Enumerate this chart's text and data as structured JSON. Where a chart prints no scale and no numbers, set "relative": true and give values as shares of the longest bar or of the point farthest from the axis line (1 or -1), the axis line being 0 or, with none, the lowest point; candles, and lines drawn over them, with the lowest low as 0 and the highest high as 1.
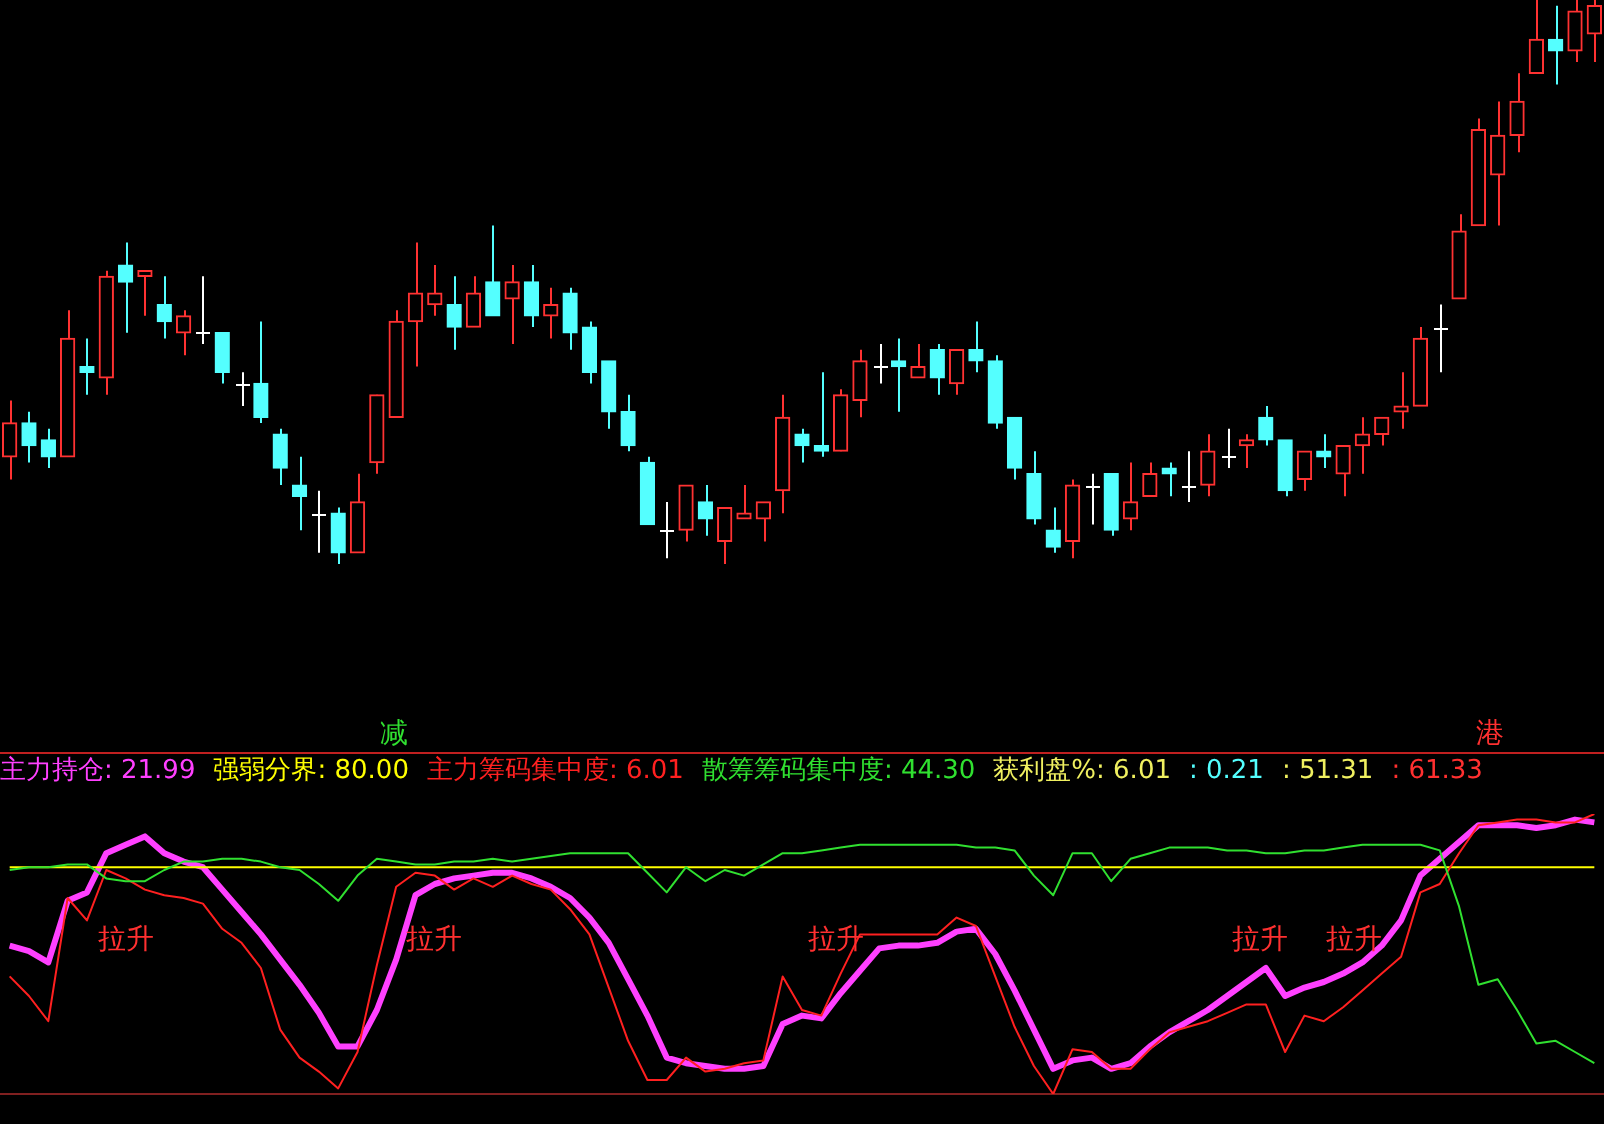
{
  "chart_data": [
    {
      "type": "candlestick",
      "relative": true,
      "tick_labels": false,
      "categories": [
        null,
        null,
        null,
        null,
        null,
        null,
        null,
        null,
        null,
        null,
        null,
        null,
        null,
        null,
        null,
        null,
        null,
        null,
        null,
        null,
        null,
        null,
        null,
        null,
        null,
        null,
        null,
        null,
        null,
        null,
        null,
        null,
        null,
        null,
        null,
        null,
        null,
        null,
        null,
        null,
        null,
        null,
        null,
        null,
        null,
        null,
        null,
        null,
        null,
        null,
        null,
        null,
        null,
        null,
        null,
        null,
        null,
        null,
        null,
        null,
        null,
        null,
        null,
        null,
        null,
        null,
        null,
        null,
        null,
        null,
        null,
        null,
        null,
        null,
        null,
        null,
        null,
        null,
        null,
        null,
        null,
        null,
        null
      ],
      "ohlc": [
        [
          0.19,
          0.29,
          0.15,
          0.25
        ],
        [
          0.25,
          0.27,
          0.18,
          0.21
        ],
        [
          0.22,
          0.24,
          0.17,
          0.19
        ],
        [
          0.19,
          0.45,
          0.19,
          0.4
        ],
        [
          0.35,
          0.4,
          0.3,
          0.34
        ],
        [
          0.33,
          0.52,
          0.3,
          0.51
        ],
        [
          0.53,
          0.57,
          0.41,
          0.5
        ],
        [
          0.51,
          0.52,
          0.44,
          0.52
        ],
        [
          0.46,
          0.51,
          0.4,
          0.43
        ],
        [
          0.41,
          0.45,
          0.37,
          0.44
        ],
        [
          0.41,
          0.51,
          0.39,
          0.41
        ],
        [
          0.41,
          0.41,
          0.32,
          0.34
        ],
        [
          0.32,
          0.34,
          0.28,
          0.32
        ],
        [
          0.32,
          0.43,
          0.25,
          0.26
        ],
        [
          0.23,
          0.24,
          0.14,
          0.17
        ],
        [
          0.14,
          0.19,
          0.06,
          0.12
        ],
        [
          0.09,
          0.13,
          0.02,
          0.09
        ],
        [
          0.09,
          0.1,
          0.0,
          0.02
        ],
        [
          0.02,
          0.16,
          0.02,
          0.11
        ],
        [
          0.18,
          0.3,
          0.16,
          0.3
        ],
        [
          0.26,
          0.45,
          0.26,
          0.43
        ],
        [
          0.43,
          0.57,
          0.35,
          0.48
        ],
        [
          0.46,
          0.53,
          0.44,
          0.48
        ],
        [
          0.46,
          0.51,
          0.38,
          0.42
        ],
        [
          0.42,
          0.51,
          0.42,
          0.48
        ],
        [
          0.5,
          0.6,
          0.44,
          0.44
        ],
        [
          0.47,
          0.53,
          0.39,
          0.5
        ],
        [
          0.5,
          0.53,
          0.42,
          0.44
        ],
        [
          0.44,
          0.49,
          0.4,
          0.46
        ],
        [
          0.48,
          0.49,
          0.38,
          0.41
        ],
        [
          0.42,
          0.43,
          0.32,
          0.34
        ],
        [
          0.36,
          0.36,
          0.24,
          0.27
        ],
        [
          0.27,
          0.3,
          0.2,
          0.21
        ],
        [
          0.18,
          0.19,
          0.07,
          0.07
        ],
        [
          0.06,
          0.11,
          0.01,
          0.06
        ],
        [
          0.06,
          0.14,
          0.04,
          0.14
        ],
        [
          0.11,
          0.14,
          0.05,
          0.08
        ],
        [
          0.04,
          0.1,
          0.0,
          0.1
        ],
        [
          0.08,
          0.14,
          0.08,
          0.09
        ],
        [
          0.08,
          0.11,
          0.04,
          0.11
        ],
        [
          0.13,
          0.3,
          0.09,
          0.26
        ],
        [
          0.23,
          0.24,
          0.18,
          0.21
        ],
        [
          0.21,
          0.34,
          0.19,
          0.2
        ],
        [
          0.2,
          0.31,
          0.2,
          0.3
        ],
        [
          0.29,
          0.38,
          0.26,
          0.36
        ],
        [
          0.35,
          0.39,
          0.32,
          0.35
        ],
        [
          0.36,
          0.4,
          0.27,
          0.35
        ],
        [
          0.33,
          0.39,
          0.33,
          0.35
        ],
        [
          0.38,
          0.39,
          0.3,
          0.33
        ],
        [
          0.32,
          0.38,
          0.3,
          0.38
        ],
        [
          0.38,
          0.43,
          0.34,
          0.36
        ],
        [
          0.36,
          0.37,
          0.24,
          0.25
        ],
        [
          0.26,
          0.26,
          0.15,
          0.17
        ],
        [
          0.16,
          0.2,
          0.07,
          0.08
        ],
        [
          0.06,
          0.1,
          0.02,
          0.03
        ],
        [
          0.04,
          0.15,
          0.01,
          0.14
        ],
        [
          0.14,
          0.16,
          0.07,
          0.14
        ],
        [
          0.16,
          0.16,
          0.05,
          0.06
        ],
        [
          0.08,
          0.18,
          0.06,
          0.11
        ],
        [
          0.12,
          0.18,
          0.12,
          0.16
        ],
        [
          0.17,
          0.18,
          0.12,
          0.16
        ],
        [
          0.14,
          0.2,
          0.11,
          0.14
        ],
        [
          0.14,
          0.23,
          0.12,
          0.2
        ],
        [
          0.19,
          0.24,
          0.17,
          0.19
        ],
        [
          0.21,
          0.23,
          0.17,
          0.22
        ],
        [
          0.26,
          0.28,
          0.21,
          0.22
        ],
        [
          0.22,
          0.22,
          0.12,
          0.13
        ],
        [
          0.15,
          0.2,
          0.13,
          0.2
        ],
        [
          0.2,
          0.23,
          0.17,
          0.19
        ],
        [
          0.16,
          0.21,
          0.12,
          0.21
        ],
        [
          0.21,
          0.26,
          0.16,
          0.23
        ],
        [
          0.23,
          0.26,
          0.21,
          0.26
        ],
        [
          0.27,
          0.34,
          0.24,
          0.28
        ],
        [
          0.28,
          0.42,
          0.28,
          0.4
        ],
        [
          0.42,
          0.46,
          0.34,
          0.42
        ],
        [
          0.47,
          0.62,
          0.47,
          0.59
        ],
        [
          0.6,
          0.79,
          0.6,
          0.77
        ],
        [
          0.69,
          0.82,
          0.6,
          0.76
        ],
        [
          0.76,
          0.87,
          0.73,
          0.82
        ],
        [
          0.87,
          1.0,
          0.87,
          0.93
        ],
        [
          0.93,
          0.99,
          0.85,
          0.91
        ],
        [
          0.91,
          1.0,
          0.89,
          0.98
        ],
        [
          0.94,
          1.0,
          0.89,
          0.99
        ]
      ],
      "colors": [
        "#ff3232",
        "#54ffff",
        "#54ffff",
        "#ff3232",
        "#54ffff",
        "#ff3232",
        "#54ffff",
        "#ff3232",
        "#54ffff",
        "#ff3232",
        "#ffffff",
        "#54ffff",
        "#ffffff",
        "#54ffff",
        "#54ffff",
        "#54ffff",
        "#ffffff",
        "#54ffff",
        "#ff3232",
        "#ff3232",
        "#ff3232",
        "#ff3232",
        "#ff3232",
        "#54ffff",
        "#ff3232",
        "#54ffff",
        "#ff3232",
        "#54ffff",
        "#ff3232",
        "#54ffff",
        "#54ffff",
        "#54ffff",
        "#54ffff",
        "#54ffff",
        "#ffffff",
        "#ff3232",
        "#54ffff",
        "#ff3232",
        "#ff3232",
        "#ff3232",
        "#ff3232",
        "#54ffff",
        "#54ffff",
        "#ff3232",
        "#ff3232",
        "#ffffff",
        "#54ffff",
        "#ff3232",
        "#54ffff",
        "#ff3232",
        "#54ffff",
        "#54ffff",
        "#54ffff",
        "#54ffff",
        "#54ffff",
        "#ff3232",
        "#ffffff",
        "#54ffff",
        "#ff3232",
        "#ff3232",
        "#54ffff",
        "#ffffff",
        "#ff3232",
        "#ffffff",
        "#ff3232",
        "#54ffff",
        "#54ffff",
        "#ff3232",
        "#54ffff",
        "#ff3232",
        "#ff3232",
        "#ff3232",
        "#ff3232",
        "#ff3232",
        "#ffffff",
        "#ff3232",
        "#ff3232",
        "#ff3232",
        "#ff3232",
        "#ff3232",
        "#54ffff",
        "#ff3232",
        "#ff3232"
      ]
    },
    {
      "type": "line",
      "relative": true,
      "tick_labels": false,
      "categories": [
        null,
        null,
        null,
        null,
        null,
        null,
        null,
        null,
        null,
        null,
        null,
        null,
        null,
        null,
        null,
        null,
        null,
        null,
        null,
        null,
        null,
        null,
        null,
        null,
        null,
        null,
        null,
        null,
        null,
        null,
        null,
        null,
        null,
        null,
        null,
        null,
        null,
        null,
        null,
        null,
        null,
        null,
        null,
        null,
        null,
        null,
        null,
        null,
        null,
        null,
        null,
        null,
        null,
        null,
        null,
        null,
        null,
        null,
        null,
        null,
        null,
        null,
        null,
        null,
        null,
        null,
        null,
        null,
        null,
        null,
        null,
        null,
        null,
        null,
        null,
        null,
        null,
        null,
        null,
        null,
        null,
        null,
        null
      ],
      "series": [
        {
          "name": "主力持仓: 21.99",
          "color": "#ff40ff",
          "values": [
            0.53,
            0.51,
            0.47,
            0.69,
            0.72,
            0.86,
            0.89,
            0.92,
            0.86,
            0.83,
            0.81,
            0.73,
            0.65,
            0.57,
            0.48,
            0.39,
            0.29,
            0.17,
            0.17,
            0.3,
            0.48,
            0.71,
            0.75,
            0.77,
            0.78,
            0.79,
            0.79,
            0.77,
            0.74,
            0.7,
            0.63,
            0.54,
            0.41,
            0.28,
            0.13,
            0.11,
            0.1,
            0.09,
            0.09,
            0.1,
            0.25,
            0.28,
            0.27,
            0.36,
            0.44,
            0.52,
            0.53,
            0.53,
            0.54,
            0.58,
            0.59,
            0.5,
            0.37,
            0.23,
            0.09,
            0.12,
            0.13,
            0.09,
            0.11,
            0.17,
            0.22,
            0.26,
            0.3,
            0.35,
            0.4,
            0.45,
            0.35,
            0.38,
            0.4,
            0.43,
            0.47,
            0.53,
            0.62,
            0.78,
            0.84,
            0.9,
            0.96,
            0.96,
            0.96,
            0.95,
            0.96,
            0.98,
            0.97
          ]
        },
        {
          "name": "强弱分界: 80.00",
          "color": "#ffff00",
          "values": [
            0.81,
            0.81,
            0.81,
            0.81,
            0.81,
            0.81,
            0.81,
            0.81,
            0.81,
            0.81,
            0.81,
            0.81,
            0.81,
            0.81,
            0.81,
            0.81,
            0.81,
            0.81,
            0.81,
            0.81,
            0.81,
            0.81,
            0.81,
            0.81,
            0.81,
            0.81,
            0.81,
            0.81,
            0.81,
            0.81,
            0.81,
            0.81,
            0.81,
            0.81,
            0.81,
            0.81,
            0.81,
            0.81,
            0.81,
            0.81,
            0.81,
            0.81,
            0.81,
            0.81,
            0.81,
            0.81,
            0.81,
            0.81,
            0.81,
            0.81,
            0.81,
            0.81,
            0.81,
            0.81,
            0.81,
            0.81,
            0.81,
            0.81,
            0.81,
            0.81,
            0.81,
            0.81,
            0.81,
            0.81,
            0.81,
            0.81,
            0.81,
            0.81,
            0.81,
            0.81,
            0.81,
            0.81,
            0.81,
            0.81,
            0.81,
            0.81,
            0.81,
            0.81,
            0.81,
            0.81,
            0.81,
            0.81,
            0.81
          ]
        },
        {
          "name": "主力筹码集中度: 6.01",
          "color": "#ff2020",
          "values": [
            0.42,
            0.35,
            0.26,
            0.7,
            0.62,
            0.8,
            0.77,
            0.73,
            0.71,
            0.7,
            0.68,
            0.59,
            0.54,
            0.45,
            0.23,
            0.13,
            0.08,
            0.02,
            0.15,
            0.46,
            0.74,
            0.79,
            0.78,
            0.73,
            0.77,
            0.74,
            0.78,
            0.75,
            0.73,
            0.66,
            0.57,
            0.38,
            0.19,
            0.05,
            0.05,
            0.13,
            0.08,
            0.09,
            0.11,
            0.12,
            0.42,
            0.3,
            0.28,
            0.43,
            0.57,
            0.57,
            0.57,
            0.57,
            0.57,
            0.63,
            0.6,
            0.42,
            0.24,
            0.1,
            0.0,
            0.16,
            0.15,
            0.09,
            0.09,
            0.16,
            0.22,
            0.24,
            0.26,
            0.29,
            0.32,
            0.32,
            0.15,
            0.28,
            0.26,
            0.31,
            0.37,
            0.43,
            0.49,
            0.72,
            0.75,
            0.86,
            0.96,
            0.97,
            0.98,
            0.98,
            0.97,
            0.97,
            1.0
          ]
        },
        {
          "name": "散筹筹码集中度: 44.30",
          "color": "#30e030",
          "values": [
            0.8,
            0.81,
            0.81,
            0.82,
            0.82,
            0.77,
            0.76,
            0.76,
            0.8,
            0.83,
            0.83,
            0.84,
            0.84,
            0.83,
            0.81,
            0.8,
            0.75,
            0.69,
            0.78,
            0.84,
            0.83,
            0.82,
            0.82,
            0.83,
            0.83,
            0.84,
            0.83,
            0.84,
            0.85,
            0.86,
            0.86,
            0.86,
            0.86,
            0.79,
            0.72,
            0.81,
            0.76,
            0.8,
            0.78,
            0.82,
            0.86,
            0.86,
            0.87,
            0.88,
            0.89,
            0.89,
            0.89,
            0.89,
            0.89,
            0.89,
            0.88,
            0.88,
            0.87,
            0.78,
            0.71,
            0.86,
            0.86,
            0.76,
            0.84,
            0.86,
            0.88,
            0.88,
            0.88,
            0.87,
            0.87,
            0.86,
            0.86,
            0.87,
            0.87,
            0.88,
            0.89,
            0.89,
            0.89,
            0.89,
            0.87,
            0.67,
            0.39,
            0.41,
            0.3,
            0.18,
            0.19,
            0.15,
            0.11
          ]
        }
      ],
      "annotations": [
        "获利盘%: 6.01",
        ": 0.21",
        ": 51.31",
        ": 61.33",
        "减",
        "港",
        "拉升",
        "拉升",
        "拉升",
        "拉升",
        "拉升"
      ]
    }
  ]
}
